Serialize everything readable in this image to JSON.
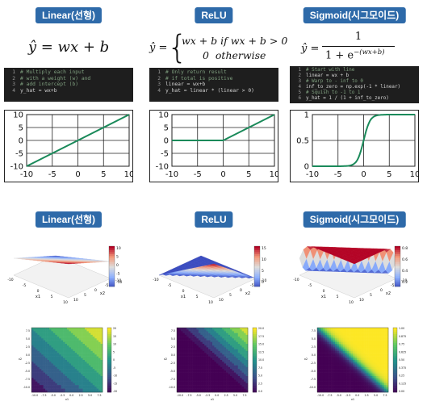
{
  "columns": [
    {
      "title": "Linear(선형)",
      "formula": "ŷ = wx + b",
      "code": [
        {
          "n": "1",
          "t": "# Multiply each input"
        },
        {
          "n": "2",
          "t": "# with a weight (w) and"
        },
        {
          "n": "3",
          "t": "# add intercept (b)"
        },
        {
          "n": "4",
          "t": "y_hat = wx+b"
        }
      ],
      "chart_data": {
        "type": "line",
        "x": [
          -10,
          10
        ],
        "y": [
          -10,
          10
        ],
        "xlim": [
          -10,
          10
        ],
        "ylim": [
          -10,
          10
        ],
        "xticks": [
          "-10",
          "-5",
          "0",
          "5",
          "10"
        ],
        "yticks": [
          "10",
          "5",
          "0",
          "-5",
          "-10"
        ],
        "grid": true,
        "color": "#1a8a5a"
      },
      "surface_title": "Linear(선형)",
      "surface_colorbar": [
        "10",
        "5",
        "0",
        "-5",
        "-10"
      ],
      "heat_colorbar": [
        "20",
        "15",
        "10",
        "5",
        "0",
        "-5",
        "-10",
        "-15",
        "-20"
      ]
    },
    {
      "title": "ReLU",
      "formula_lhs": "ŷ =",
      "formula_case1": "wx + b if wx + b > 0",
      "formula_case2": "0  otherwise",
      "code": [
        {
          "n": "1",
          "t": "# Only return result"
        },
        {
          "n": "2",
          "t": "# if total is positive"
        },
        {
          "n": "3",
          "t": "linear = wx+b"
        },
        {
          "n": "4",
          "t": "y_hat = linear * (linear > 0)"
        }
      ],
      "chart_data": {
        "type": "line",
        "x": [
          -10,
          0,
          10
        ],
        "y": [
          0,
          0,
          10
        ],
        "xlim": [
          -10,
          10
        ],
        "ylim": [
          -10,
          10
        ],
        "xticks": [
          "-10",
          "-5",
          "0",
          "5",
          "10"
        ],
        "yticks": [
          "10",
          "5",
          "0",
          "-5",
          "-10"
        ],
        "grid": true,
        "color": "#1a8a5a"
      },
      "surface_title": "ReLU",
      "surface_colorbar": [
        "15",
        "10",
        "5",
        "0"
      ],
      "heat_colorbar": [
        "20.0",
        "17.5",
        "15.0",
        "12.5",
        "10.0",
        "7.5",
        "5.0",
        "2.5",
        "0.0"
      ]
    },
    {
      "title": "Sigmoid(시그모이드)",
      "formula_lhs": "ŷ =",
      "formula_num": "1",
      "formula_den": "1 + e",
      "formula_exp": "−(wx+b)",
      "code": [
        {
          "n": "1",
          "t": "# Start with line"
        },
        {
          "n": "2",
          "t": "linear = wx + b"
        },
        {
          "n": "3",
          "t": "# Warp to - inf to 0"
        },
        {
          "n": "4",
          "t": "inf_to_zero = np.exp(-1 * linear)"
        },
        {
          "n": "5",
          "t": "# Squish to -1 to 1"
        },
        {
          "n": "6",
          "t": "y_hat = 1 / (1 + inf_to_zero)"
        }
      ],
      "chart_data": {
        "type": "line",
        "function": "sigmoid",
        "x": [
          -10,
          -8,
          -6,
          -4,
          -3,
          -2,
          -1,
          0,
          1,
          2,
          3,
          4,
          6,
          8,
          10
        ],
        "y": [
          0,
          0,
          0,
          0.02,
          0.05,
          0.12,
          0.27,
          0.5,
          0.73,
          0.88,
          0.95,
          0.98,
          1,
          1,
          1
        ],
        "xlim": [
          -10,
          10
        ],
        "ylim": [
          0,
          1
        ],
        "xticks": [
          "-10",
          "-5",
          "0",
          "5",
          "10"
        ],
        "yticks": [
          "1",
          "0.5",
          "0"
        ],
        "grid": true,
        "color": "#1a8a5a"
      },
      "surface_title": "Sigmoid(시그모이드)",
      "surface_colorbar": [
        "0.8",
        "0.6",
        "0.4",
        "0.2"
      ],
      "heat_colorbar": [
        "1.00",
        "0.875",
        "0.75",
        "0.625",
        "0.50",
        "0.375",
        "0.25",
        "0.125",
        "0.00"
      ]
    }
  ],
  "surface_axes": {
    "x": "x1",
    "y": "x2",
    "ticks": [
      "-10",
      "-5",
      "0",
      "5",
      "10"
    ]
  },
  "heat_axes": {
    "xticks": [
      "-10.0",
      "-7.5",
      "-5.0",
      "-2.5",
      "0.0",
      "2.5",
      "5.0",
      "7.5"
    ],
    "yticks": [
      "7.5",
      "5.0",
      "2.5",
      "0.0",
      "-2.5",
      "-5.0",
      "-7.5",
      "-10.0"
    ],
    "xlabel": "x1",
    "ylabel": "x2"
  },
  "colors": {
    "title_bg": "#2e6aa9",
    "code_bg": "#1e1e1e",
    "line": "#1a8a5a"
  }
}
